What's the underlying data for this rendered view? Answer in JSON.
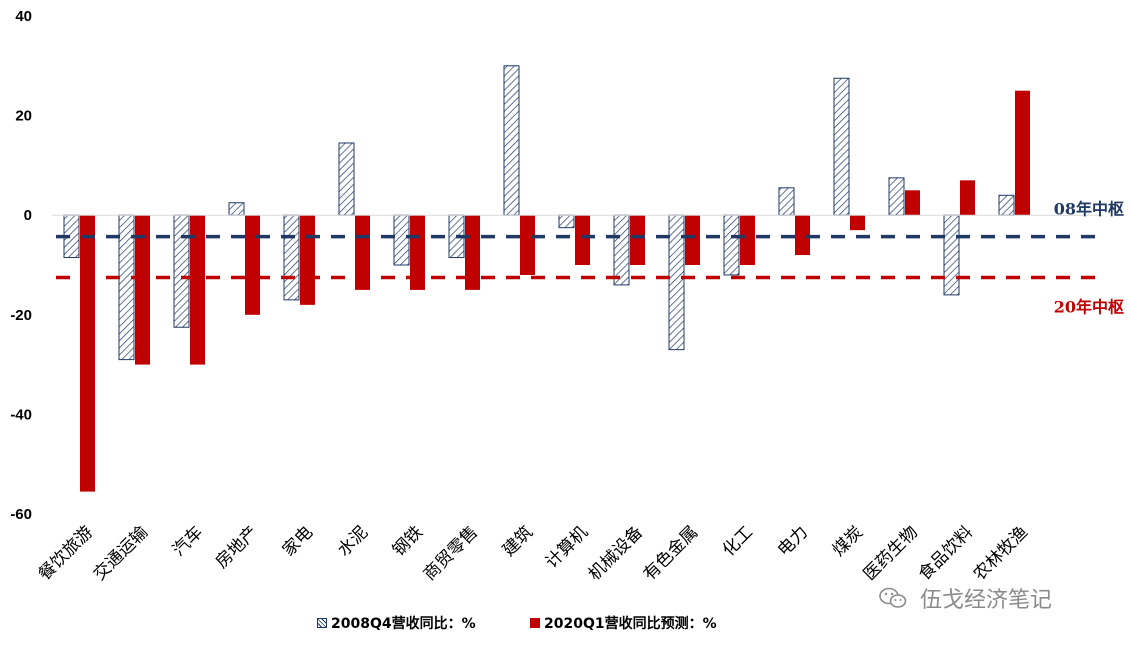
{
  "chart_data": {
    "type": "bar",
    "categories": [
      "餐饮旅游",
      "交通运输",
      "汽车",
      "房地产",
      "家电",
      "水泥",
      "钢铁",
      "商贸零售",
      "建筑",
      "计算机",
      "机械设备",
      "有色金属",
      "化工",
      "电力",
      "煤炭",
      "医药生物",
      "食品饮料",
      "农林牧渔"
    ],
    "series": [
      {
        "name": "2008Q4营收同比：%",
        "color": "#1f3864",
        "pattern": "hatched",
        "values": [
          -8.5,
          -29,
          -22.5,
          2.5,
          -17,
          14.5,
          -10,
          -8.5,
          30,
          -2.5,
          -14,
          -27,
          -12,
          5.5,
          27.5,
          7.5,
          -16,
          4
        ]
      },
      {
        "name": "2020Q1营收同比预测：%",
        "color": "#c00000",
        "pattern": "solid",
        "values": [
          -55.5,
          -30,
          -30,
          -20,
          -18,
          -15,
          -15,
          -15,
          -12,
          -10,
          -10,
          -10,
          -10,
          -8,
          -3,
          5,
          7,
          25
        ]
      }
    ],
    "ylim": [
      -60,
      40
    ],
    "yticks": [
      40,
      20,
      0,
      -20,
      -40,
      -60
    ],
    "reference_lines": [
      {
        "label": "08年中枢",
        "value": -4.3,
        "color": "#1f3864"
      },
      {
        "label": "20年中枢",
        "value": -12.5,
        "color": "#c00000"
      }
    ],
    "legend_position": "bottom-center"
  },
  "watermark": {
    "text": "伍戈经济笔记",
    "icon": "wechat-icon"
  }
}
